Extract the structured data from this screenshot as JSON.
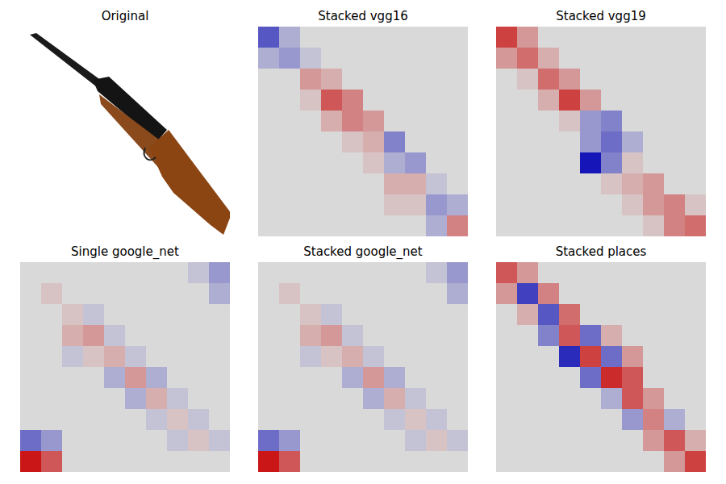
{
  "chart_data": [
    {
      "type": "image",
      "title": "Original",
      "tick_labels": false
    },
    {
      "type": "heatmap",
      "title": "Stacked vgg16",
      "tick_labels": false,
      "zlim": [
        -1,
        1
      ],
      "cells": [
        [
          -0.6,
          -0.2,
          0,
          0,
          0,
          0,
          0,
          0,
          0,
          0
        ],
        [
          -0.2,
          -0.3,
          -0.1,
          0,
          0,
          0,
          0,
          0,
          0,
          0
        ],
        [
          0,
          0,
          0.3,
          0.2,
          0,
          0,
          0,
          0,
          0,
          0
        ],
        [
          0,
          0,
          0.1,
          0.6,
          0.4,
          0,
          0,
          0,
          0,
          0
        ],
        [
          0,
          0,
          0,
          0.2,
          0.4,
          0.3,
          0,
          0,
          0,
          0
        ],
        [
          0,
          0,
          0,
          0,
          0.1,
          0.2,
          -0.4,
          0,
          0,
          0
        ],
        [
          0,
          0,
          0,
          0,
          0,
          0.1,
          -0.2,
          -0.3,
          0,
          0
        ],
        [
          0,
          0,
          0,
          0,
          0,
          0,
          0.2,
          0.2,
          -0.1,
          0
        ],
        [
          0,
          0,
          0,
          0,
          0,
          0,
          0.1,
          0.1,
          -0.3,
          -0.2
        ],
        [
          0,
          0,
          0,
          0,
          0,
          0,
          0,
          0,
          -0.2,
          0.4
        ]
      ]
    },
    {
      "type": "heatmap",
      "title": "Stacked vgg19",
      "tick_labels": false,
      "zlim": [
        -1,
        1
      ],
      "cells": [
        [
          0.7,
          0.3,
          0,
          0,
          0,
          0,
          0,
          0,
          0,
          0
        ],
        [
          0.3,
          0.5,
          0.2,
          0,
          0,
          0,
          0,
          0,
          0,
          0
        ],
        [
          0,
          0.1,
          0.5,
          0.3,
          0,
          0,
          0,
          0,
          0,
          0
        ],
        [
          0,
          0,
          0.2,
          0.7,
          0.3,
          0,
          0,
          0,
          0,
          0
        ],
        [
          0,
          0,
          0,
          0.1,
          -0.3,
          -0.4,
          0,
          0,
          0,
          0
        ],
        [
          0,
          0,
          0,
          0,
          -0.3,
          -0.5,
          -0.2,
          0,
          0,
          0
        ],
        [
          0,
          0,
          0,
          0,
          -0.9,
          -0.4,
          0.1,
          0,
          0,
          0
        ],
        [
          0,
          0,
          0,
          0,
          0,
          0.1,
          0.2,
          0.3,
          0,
          0
        ],
        [
          0,
          0,
          0,
          0,
          0,
          0,
          0.1,
          0.3,
          0.4,
          0.1
        ],
        [
          0,
          0,
          0,
          0,
          0,
          0,
          0,
          0.1,
          0.4,
          0.5
        ]
      ]
    },
    {
      "type": "heatmap",
      "title": "Single google_net",
      "tick_labels": false,
      "zlim": [
        -1,
        1
      ],
      "cells": [
        [
          0,
          0,
          0,
          0,
          0,
          0,
          0,
          0,
          -0.1,
          -0.3
        ],
        [
          0,
          0.1,
          0,
          0,
          0,
          0,
          0,
          0,
          0,
          -0.2
        ],
        [
          0,
          0,
          0.1,
          -0.1,
          0,
          0,
          0,
          0,
          0,
          0
        ],
        [
          0,
          0,
          0.2,
          0.3,
          -0.1,
          0,
          0,
          0,
          0,
          0
        ],
        [
          0,
          0,
          -0.1,
          0.1,
          0.2,
          -0.1,
          0,
          0,
          0,
          0
        ],
        [
          0,
          0,
          0,
          0,
          -0.2,
          0.3,
          -0.2,
          0,
          0,
          0
        ],
        [
          0,
          0,
          0,
          0,
          0,
          -0.2,
          0.2,
          -0.1,
          0,
          0
        ],
        [
          0,
          0,
          0,
          0,
          0,
          0,
          -0.1,
          0.1,
          -0.1,
          0
        ],
        [
          -0.5,
          -0.3,
          0,
          0,
          0,
          0,
          0,
          -0.1,
          0.1,
          -0.1
        ],
        [
          0.9,
          0.6,
          0,
          0,
          0,
          0,
          0,
          0,
          0,
          0
        ]
      ]
    },
    {
      "type": "heatmap",
      "title": "Stacked google_net",
      "tick_labels": false,
      "zlim": [
        -1,
        1
      ],
      "cells": [
        [
          0,
          0,
          0,
          0,
          0,
          0,
          0,
          0,
          -0.1,
          -0.3
        ],
        [
          0,
          0.1,
          0,
          0,
          0,
          0,
          0,
          0,
          0,
          -0.2
        ],
        [
          0,
          0,
          0.1,
          -0.1,
          0,
          0,
          0,
          0,
          0,
          0
        ],
        [
          0,
          0,
          0.2,
          0.3,
          -0.1,
          0,
          0,
          0,
          0,
          0
        ],
        [
          0,
          0,
          -0.1,
          0.1,
          0.2,
          -0.1,
          0,
          0,
          0,
          0
        ],
        [
          0,
          0,
          0,
          0,
          -0.2,
          0.3,
          -0.2,
          0,
          0,
          0
        ],
        [
          0,
          0,
          0,
          0,
          0,
          -0.2,
          0.2,
          -0.1,
          0,
          0
        ],
        [
          0,
          0,
          0,
          0,
          0,
          0,
          -0.1,
          0.1,
          -0.1,
          0
        ],
        [
          -0.5,
          -0.3,
          0,
          0,
          0,
          0,
          0,
          -0.1,
          0.1,
          -0.1
        ],
        [
          0.9,
          0.6,
          0,
          0,
          0,
          0,
          0,
          0,
          0,
          0
        ]
      ]
    },
    {
      "type": "heatmap",
      "title": "Stacked places",
      "tick_labels": false,
      "zlim": [
        -1,
        1
      ],
      "cells": [
        [
          0.6,
          0.3,
          0,
          0,
          0,
          0,
          0,
          0,
          0,
          0
        ],
        [
          0.3,
          -0.7,
          0.4,
          0,
          0,
          0,
          0,
          0,
          0,
          0
        ],
        [
          0,
          0.2,
          -0.6,
          0.5,
          0,
          0,
          0,
          0,
          0,
          0
        ],
        [
          0,
          0,
          -0.4,
          0.6,
          -0.5,
          0.2,
          0,
          0,
          0,
          0
        ],
        [
          0,
          0,
          0,
          -0.8,
          0.7,
          -0.5,
          0.3,
          0,
          0,
          0
        ],
        [
          0,
          0,
          0,
          0,
          -0.5,
          0.8,
          0.6,
          0,
          0,
          0
        ],
        [
          0,
          0,
          0,
          0,
          0,
          -0.2,
          0.6,
          0.3,
          0,
          0
        ],
        [
          0,
          0,
          0,
          0,
          0,
          0,
          -0.3,
          0.4,
          -0.2,
          0
        ],
        [
          0,
          0,
          0,
          0,
          0,
          0,
          0,
          0.3,
          0.6,
          0.2
        ],
        [
          0,
          0,
          0,
          0,
          0,
          0,
          0,
          0,
          0.3,
          0.7
        ]
      ]
    }
  ]
}
